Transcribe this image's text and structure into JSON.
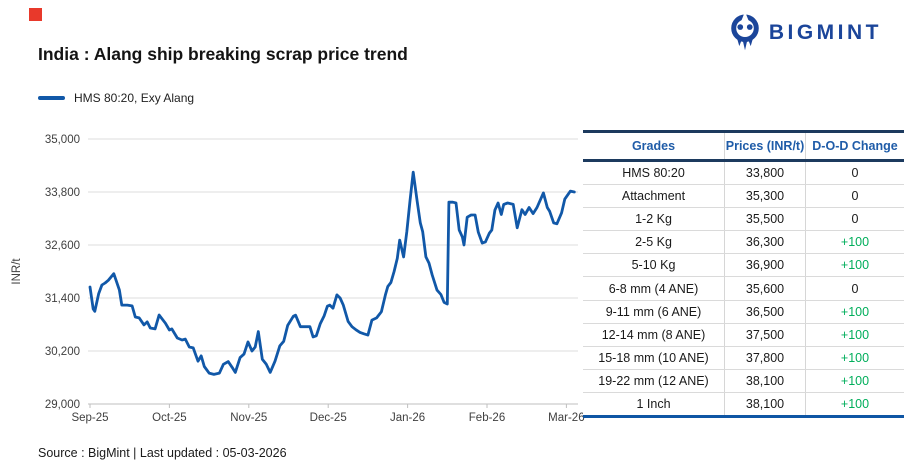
{
  "colors": {
    "line_blue": "#1158A8",
    "green": "#00AE5B",
    "navy_border": "#1C3A5E",
    "table_bottom_blue": "#0F56A4",
    "header_blue": "#1F5CA8",
    "logo_navy": "#1B459A",
    "red_marker": "#E8392B"
  },
  "branding": {
    "logo_text": "BIGMINT"
  },
  "header": {
    "title": "India : Alang ship breaking scrap price trend"
  },
  "legend": {
    "label": "HMS 80:20, Exy Alang"
  },
  "chart_data": {
    "type": "line",
    "title": "India : Alang ship breaking scrap price trend",
    "series_name": "HMS 80:20, Exy Alang",
    "ylabel": "INR/t",
    "line_color": "#1158A8",
    "grid": true,
    "legend_position": "top-left",
    "x_ticks": [
      "Sep-25",
      "Oct-25",
      "Nov-25",
      "Dec-25",
      "Jan-26",
      "Feb-26",
      "Mar-26"
    ],
    "y_ticks": [
      {
        "value": 29000,
        "label": "29,000"
      },
      {
        "value": 30200,
        "label": "30,200"
      },
      {
        "value": 31400,
        "label": "31,400"
      },
      {
        "value": 32600,
        "label": "32,600"
      },
      {
        "value": 33800,
        "label": "33,800"
      },
      {
        "value": 35000,
        "label": "35,000"
      }
    ],
    "ylim": [
      29000,
      35000
    ],
    "xlim_months": [
      0,
      6.15
    ],
    "points": [
      [
        0.0,
        31650
      ],
      [
        0.04,
        31150
      ],
      [
        0.06,
        31100
      ],
      [
        0.11,
        31500
      ],
      [
        0.15,
        31695
      ],
      [
        0.19,
        31740
      ],
      [
        0.23,
        31800
      ],
      [
        0.3,
        31950
      ],
      [
        0.37,
        31580
      ],
      [
        0.4,
        31240
      ],
      [
        0.47,
        31240
      ],
      [
        0.53,
        31220
      ],
      [
        0.57,
        30970
      ],
      [
        0.62,
        30950
      ],
      [
        0.68,
        30790
      ],
      [
        0.72,
        30860
      ],
      [
        0.76,
        30720
      ],
      [
        0.82,
        30700
      ],
      [
        0.87,
        31015
      ],
      [
        0.95,
        30830
      ],
      [
        1.0,
        30675
      ],
      [
        1.03,
        30700
      ],
      [
        1.1,
        30495
      ],
      [
        1.16,
        30450
      ],
      [
        1.2,
        30470
      ],
      [
        1.25,
        30290
      ],
      [
        1.3,
        30270
      ],
      [
        1.36,
        29970
      ],
      [
        1.4,
        30090
      ],
      [
        1.44,
        29850
      ],
      [
        1.5,
        29700
      ],
      [
        1.56,
        29670
      ],
      [
        1.63,
        29700
      ],
      [
        1.68,
        29900
      ],
      [
        1.74,
        29960
      ],
      [
        1.79,
        29830
      ],
      [
        1.83,
        29715
      ],
      [
        1.89,
        30050
      ],
      [
        1.94,
        30130
      ],
      [
        1.99,
        30405
      ],
      [
        2.04,
        30200
      ],
      [
        2.08,
        30290
      ],
      [
        2.12,
        30640
      ],
      [
        2.17,
        30015
      ],
      [
        2.22,
        29900
      ],
      [
        2.27,
        29715
      ],
      [
        2.33,
        29970
      ],
      [
        2.39,
        30315
      ],
      [
        2.44,
        30420
      ],
      [
        2.49,
        30780
      ],
      [
        2.56,
        30985
      ],
      [
        2.59,
        31010
      ],
      [
        2.65,
        30750
      ],
      [
        2.71,
        30750
      ],
      [
        2.77,
        30750
      ],
      [
        2.81,
        30520
      ],
      [
        2.85,
        30545
      ],
      [
        2.9,
        30820
      ],
      [
        2.95,
        31000
      ],
      [
        2.99,
        31215
      ],
      [
        3.02,
        31240
      ],
      [
        3.06,
        31170
      ],
      [
        3.11,
        31470
      ],
      [
        3.15,
        31400
      ],
      [
        3.19,
        31240
      ],
      [
        3.25,
        30870
      ],
      [
        3.3,
        30750
      ],
      [
        3.35,
        30680
      ],
      [
        3.4,
        30620
      ],
      [
        3.45,
        30590
      ],
      [
        3.5,
        30560
      ],
      [
        3.55,
        30900
      ],
      [
        3.61,
        30950
      ],
      [
        3.67,
        31090
      ],
      [
        3.72,
        31470
      ],
      [
        3.75,
        31660
      ],
      [
        3.79,
        31750
      ],
      [
        3.83,
        32000
      ],
      [
        3.87,
        32300
      ],
      [
        3.9,
        32710
      ],
      [
        3.95,
        32330
      ],
      [
        3.99,
        32900
      ],
      [
        4.03,
        33600
      ],
      [
        4.07,
        34250
      ],
      [
        4.12,
        33600
      ],
      [
        4.16,
        33100
      ],
      [
        4.19,
        32900
      ],
      [
        4.23,
        32330
      ],
      [
        4.27,
        32190
      ],
      [
        4.31,
        31920
      ],
      [
        4.37,
        31580
      ],
      [
        4.42,
        31480
      ],
      [
        4.46,
        31300
      ],
      [
        4.5,
        31265
      ],
      [
        4.52,
        33570
      ],
      [
        4.57,
        33570
      ],
      [
        4.61,
        33550
      ],
      [
        4.65,
        32940
      ],
      [
        4.69,
        32780
      ],
      [
        4.71,
        32600
      ],
      [
        4.75,
        33230
      ],
      [
        4.8,
        33280
      ],
      [
        4.85,
        33280
      ],
      [
        4.89,
        32890
      ],
      [
        4.94,
        32645
      ],
      [
        4.98,
        32670
      ],
      [
        5.03,
        32870
      ],
      [
        5.06,
        32940
      ],
      [
        5.1,
        33390
      ],
      [
        5.14,
        33550
      ],
      [
        5.18,
        33290
      ],
      [
        5.21,
        33520
      ],
      [
        5.26,
        33550
      ],
      [
        5.33,
        33520
      ],
      [
        5.38,
        32990
      ],
      [
        5.44,
        33400
      ],
      [
        5.48,
        33290
      ],
      [
        5.53,
        33450
      ],
      [
        5.58,
        33310
      ],
      [
        5.63,
        33450
      ],
      [
        5.71,
        33780
      ],
      [
        5.76,
        33450
      ],
      [
        5.79,
        33360
      ],
      [
        5.84,
        33100
      ],
      [
        5.88,
        33080
      ],
      [
        5.94,
        33330
      ],
      [
        5.98,
        33640
      ],
      [
        6.05,
        33820
      ],
      [
        6.1,
        33800
      ]
    ]
  },
  "table": {
    "headers": [
      "Grades",
      "Prices (INR/t)",
      "D-O-D Change"
    ],
    "rows": [
      {
        "grade": "HMS 80:20",
        "price": "33,800",
        "change": "0",
        "positive": false
      },
      {
        "grade": "Attachment",
        "price": "35,300",
        "change": "0",
        "positive": false
      },
      {
        "grade": "1-2 Kg",
        "price": "35,500",
        "change": "0",
        "positive": false
      },
      {
        "grade": "2-5 Kg",
        "price": "36,300",
        "change": "+100",
        "positive": true
      },
      {
        "grade": "5-10 Kg",
        "price": "36,900",
        "change": "+100",
        "positive": true
      },
      {
        "grade": "6-8 mm (4 ANE)",
        "price": "35,600",
        "change": "0",
        "positive": false
      },
      {
        "grade": "9-11 mm (6 ANE)",
        "price": "36,500",
        "change": "+100",
        "positive": true
      },
      {
        "grade": "12-14 mm (8 ANE)",
        "price": "37,500",
        "change": "+100",
        "positive": true
      },
      {
        "grade": "15-18 mm (10 ANE)",
        "price": "37,800",
        "change": "+100",
        "positive": true
      },
      {
        "grade": "19-22 mm (12 ANE)",
        "price": "38,100",
        "change": "+100",
        "positive": true
      },
      {
        "grade": "1 Inch",
        "price": "38,100",
        "change": "+100",
        "positive": true
      }
    ]
  },
  "footer": {
    "source_text": "Source : BigMint | Last updated : 05-03-2026"
  }
}
